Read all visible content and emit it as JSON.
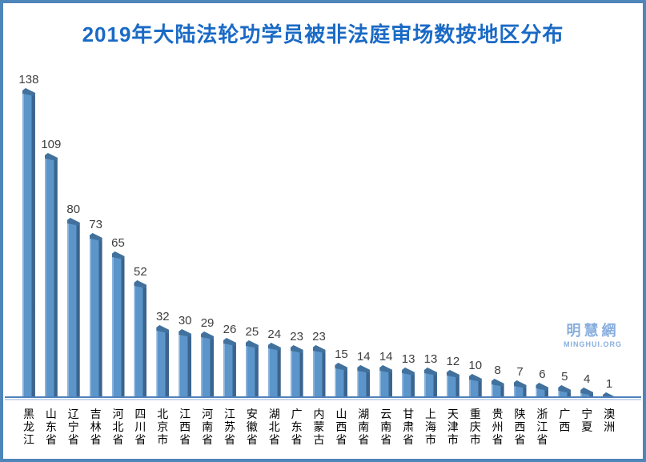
{
  "title": "2019年大陆法轮功学员被非法庭审场数按地区分布",
  "watermark": {
    "name": "明慧網",
    "site": "MINGHUI.ORG"
  },
  "colors": {
    "frame": "#4e86b9",
    "title": "#1a6ac5",
    "bar_face": "#5b95ca",
    "bar_highlight": "#8ab2dc",
    "bar_side": "#3b648e",
    "bar_cap": "#41719c",
    "axis": "#4f81bd",
    "axis_shadow": "#c9d9ed",
    "value_label": "#3f3f3f",
    "category_label": "#000000",
    "watermark": "#88aede"
  },
  "chart_data": {
    "type": "bar",
    "title": "2019年大陆法轮功学员被非法庭审场数按地区分布",
    "categories": [
      "黑龙江",
      "山东省",
      "辽宁省",
      "吉林省",
      "河北省",
      "四川省",
      "北京市",
      "江西省",
      "河南省",
      "江苏省",
      "安徽省",
      "湖北省",
      "广东省",
      "内蒙古",
      "山西省",
      "湖南省",
      "云南省",
      "甘肃省",
      "上海市",
      "天津市",
      "重庆市",
      "贵州省",
      "陕西省",
      "浙江省",
      "广西",
      "宁夏",
      "澳洲"
    ],
    "values": [
      138,
      109,
      80,
      73,
      65,
      52,
      32,
      30,
      29,
      26,
      25,
      24,
      23,
      23,
      15,
      14,
      14,
      13,
      13,
      12,
      10,
      8,
      7,
      6,
      5,
      4,
      1
    ],
    "xlabel": "",
    "ylabel": "",
    "ylim": [
      0,
      140
    ],
    "grid": false,
    "legend": false,
    "value_labels_shown": true,
    "bar_style": "3d",
    "orientation": "vertical"
  }
}
